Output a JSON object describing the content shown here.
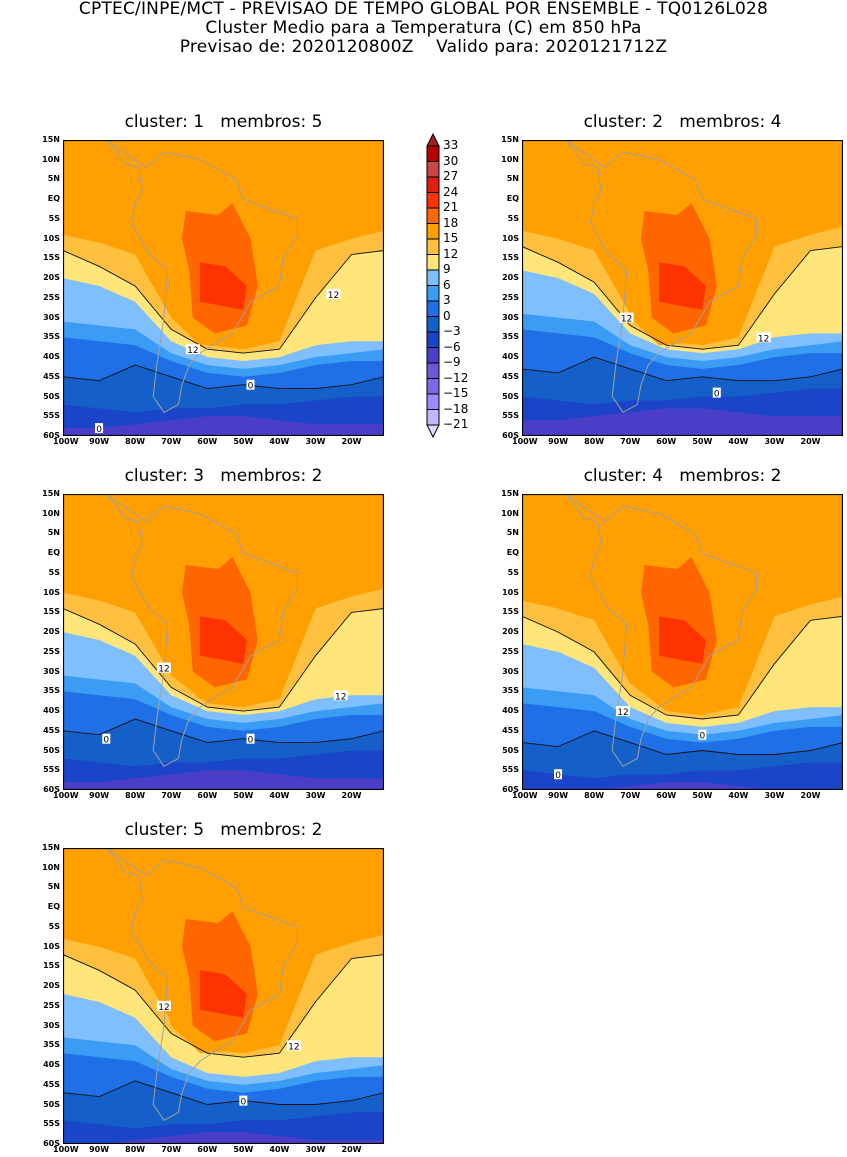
{
  "header": {
    "line1": "CPTEC/INPE/MCT - PREVISAO DE TEMPO GLOBAL POR ENSEMBLE - TQ0126L028",
    "line2": "Cluster Medio para a Temperatura (C) em 850 hPa",
    "line3": "Previsao de: 2020120800Z    Valido para: 2020121712Z"
  },
  "panels": [
    {
      "title": "cluster: 1   membros: 5"
    },
    {
      "title": "cluster: 2   membros: 4"
    },
    {
      "title": "cluster: 3   membros: 2"
    },
    {
      "title": "cluster: 4   membros: 2"
    },
    {
      "title": "cluster: 5   membros: 2"
    }
  ],
  "axes": {
    "lat_ticks": [
      "15N",
      "10N",
      "5N",
      "EQ",
      "5S",
      "10S",
      "15S",
      "20S",
      "25S",
      "30S",
      "35S",
      "40S",
      "45S",
      "50S",
      "55S",
      "60S"
    ],
    "lon_ticks": [
      "100W",
      "90W",
      "80W",
      "70W",
      "60W",
      "50W",
      "40W",
      "30W",
      "20W"
    ]
  },
  "contour_labels": {
    "warm": "12",
    "cold": "0"
  },
  "colorbar": {
    "labels": [
      "33",
      "30",
      "27",
      "24",
      "21",
      "18",
      "15",
      "12",
      "9",
      "6",
      "3",
      "0",
      "-3",
      "-6",
      "-9",
      "-12",
      "-15",
      "-18",
      "-21"
    ],
    "colors": [
      "#a52020",
      "#b80000",
      "#cc4444",
      "#e01e12",
      "#ff3300",
      "#ff6600",
      "#ffa000",
      "#ffc040",
      "#ffe57a",
      "#7fbfff",
      "#3b9cf5",
      "#1f70e6",
      "#1560c8",
      "#1a45c8",
      "#4a3ec8",
      "#6a5ad8",
      "#7a6ae8",
      "#9a8cff",
      "#c0b8ff",
      "#dcdcff"
    ]
  }
}
